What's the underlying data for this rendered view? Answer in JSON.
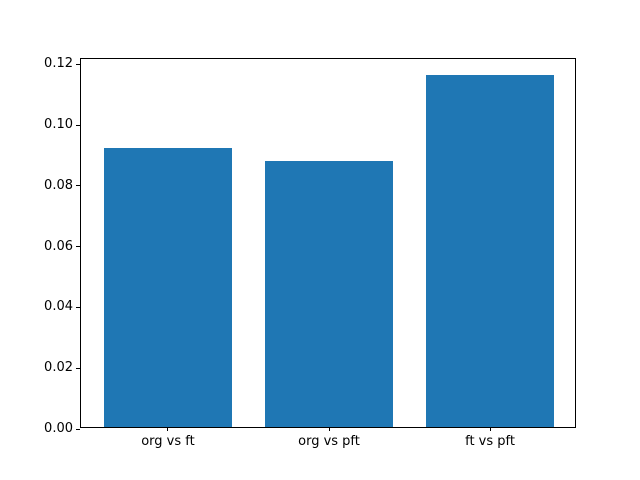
{
  "figure": {
    "background": "#ffffff"
  },
  "chart_data": {
    "type": "bar",
    "title": "",
    "xlabel": "",
    "ylabel": "",
    "categories": [
      "org vs ft",
      "org vs pft",
      "ft vs pft"
    ],
    "values": [
      0.0917,
      0.0876,
      0.116
    ],
    "bar_color": "#1f77b4",
    "axis_color": "#000000",
    "ylim": [
      0,
      0.1218
    ],
    "yticks": [
      0.0,
      0.02,
      0.04,
      0.06,
      0.08,
      0.1,
      0.12
    ],
    "ytick_labels": [
      "0.00",
      "0.02",
      "0.04",
      "0.06",
      "0.08",
      "0.10",
      "0.12"
    ],
    "bar_width_fraction": 0.8,
    "xlim": [
      -0.54,
      2.54
    ],
    "grid": false,
    "legend": null
  }
}
